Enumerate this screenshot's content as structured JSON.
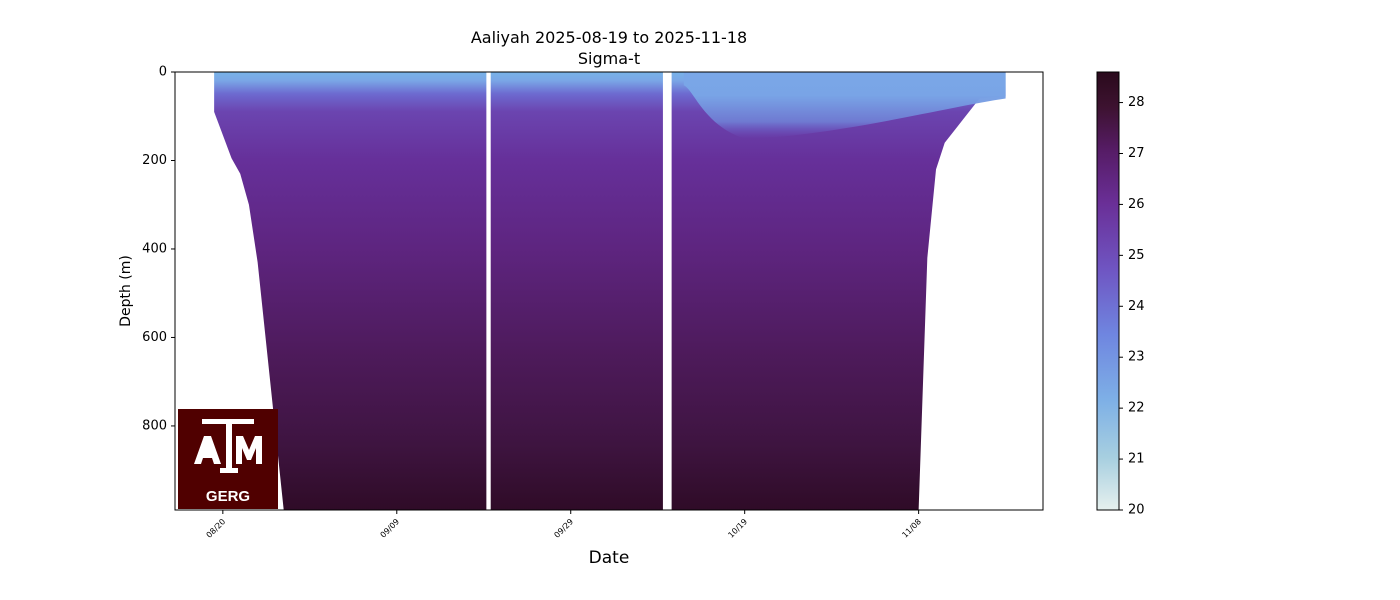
{
  "chart_data": {
    "type": "heatmap",
    "title": "Aaliyah 2025-08-19 to 2025-11-18",
    "subtitle": "Sigma-t",
    "xlabel": "Date",
    "ylabel": "Depth (m)",
    "x_range": [
      "2025-08-19",
      "2025-11-18"
    ],
    "x_ticks": [
      "08/20",
      "09/09",
      "09/29",
      "10/19",
      "11/08"
    ],
    "x_tick_dates": [
      "2025-08-20",
      "2025-09-09",
      "2025-09-29",
      "2025-10-19",
      "2025-11-08"
    ],
    "y_ticks": [
      0,
      200,
      400,
      600,
      800
    ],
    "ylim": [
      0,
      990
    ],
    "y_inverted": true,
    "colorbar": {
      "vmin": 20,
      "vmax": 28.6,
      "ticks": [
        20,
        21,
        22,
        23,
        24,
        25,
        26,
        27,
        28
      ],
      "colormap": [
        "#e6f0ee",
        "#a7cfe0",
        "#7eb0e6",
        "#6f86e0",
        "#6f55c2",
        "#6a2f97",
        "#561c66",
        "#3d1230",
        "#2a0a1c"
      ]
    },
    "data_coverage": [
      {
        "date": "2025-08-19",
        "max_depth": 90
      },
      {
        "date": "2025-08-21",
        "max_depth": 195
      },
      {
        "date": "2025-08-22",
        "max_depth": 230
      },
      {
        "date": "2025-08-23",
        "max_depth": 300
      },
      {
        "date": "2025-08-24",
        "max_depth": 430
      },
      {
        "date": "2025-08-27",
        "max_depth": 990
      },
      {
        "date": "2025-09-20",
        "max_depth": 990
      },
      {
        "date": "2025-10-10",
        "max_depth": 990
      },
      {
        "date": "2025-11-08",
        "max_depth": 990
      },
      {
        "date": "2025-11-09",
        "max_depth": 420
      },
      {
        "date": "2025-11-10",
        "max_depth": 220
      },
      {
        "date": "2025-11-11",
        "max_depth": 160
      },
      {
        "date": "2025-11-13",
        "max_depth": 110
      },
      {
        "date": "2025-11-15",
        "max_depth": 60
      },
      {
        "date": "2025-11-18",
        "max_depth": 55
      }
    ],
    "gaps": [
      {
        "start": "2025-09-19",
        "end": "2025-09-20"
      },
      {
        "start": "2025-10-09",
        "end": "2025-10-11"
      }
    ],
    "depth_profile": [
      {
        "depth": 0,
        "sigma_t": 22.6
      },
      {
        "depth": 40,
        "sigma_t": 23.3
      },
      {
        "depth": 80,
        "sigma_t": 25.0
      },
      {
        "depth": 150,
        "sigma_t": 26.3
      },
      {
        "depth": 300,
        "sigma_t": 26.8
      },
      {
        "depth": 600,
        "sigma_t": 27.3
      },
      {
        "depth": 990,
        "sigma_t": 28.0
      }
    ],
    "late_season_mixed_layer": {
      "start": "2025-10-12",
      "end": "2025-11-18",
      "depth": 150,
      "sigma_t": 22.8
    }
  },
  "logo": {
    "text": "ATM",
    "subtext": "GERG",
    "bg_color": "#500000"
  }
}
